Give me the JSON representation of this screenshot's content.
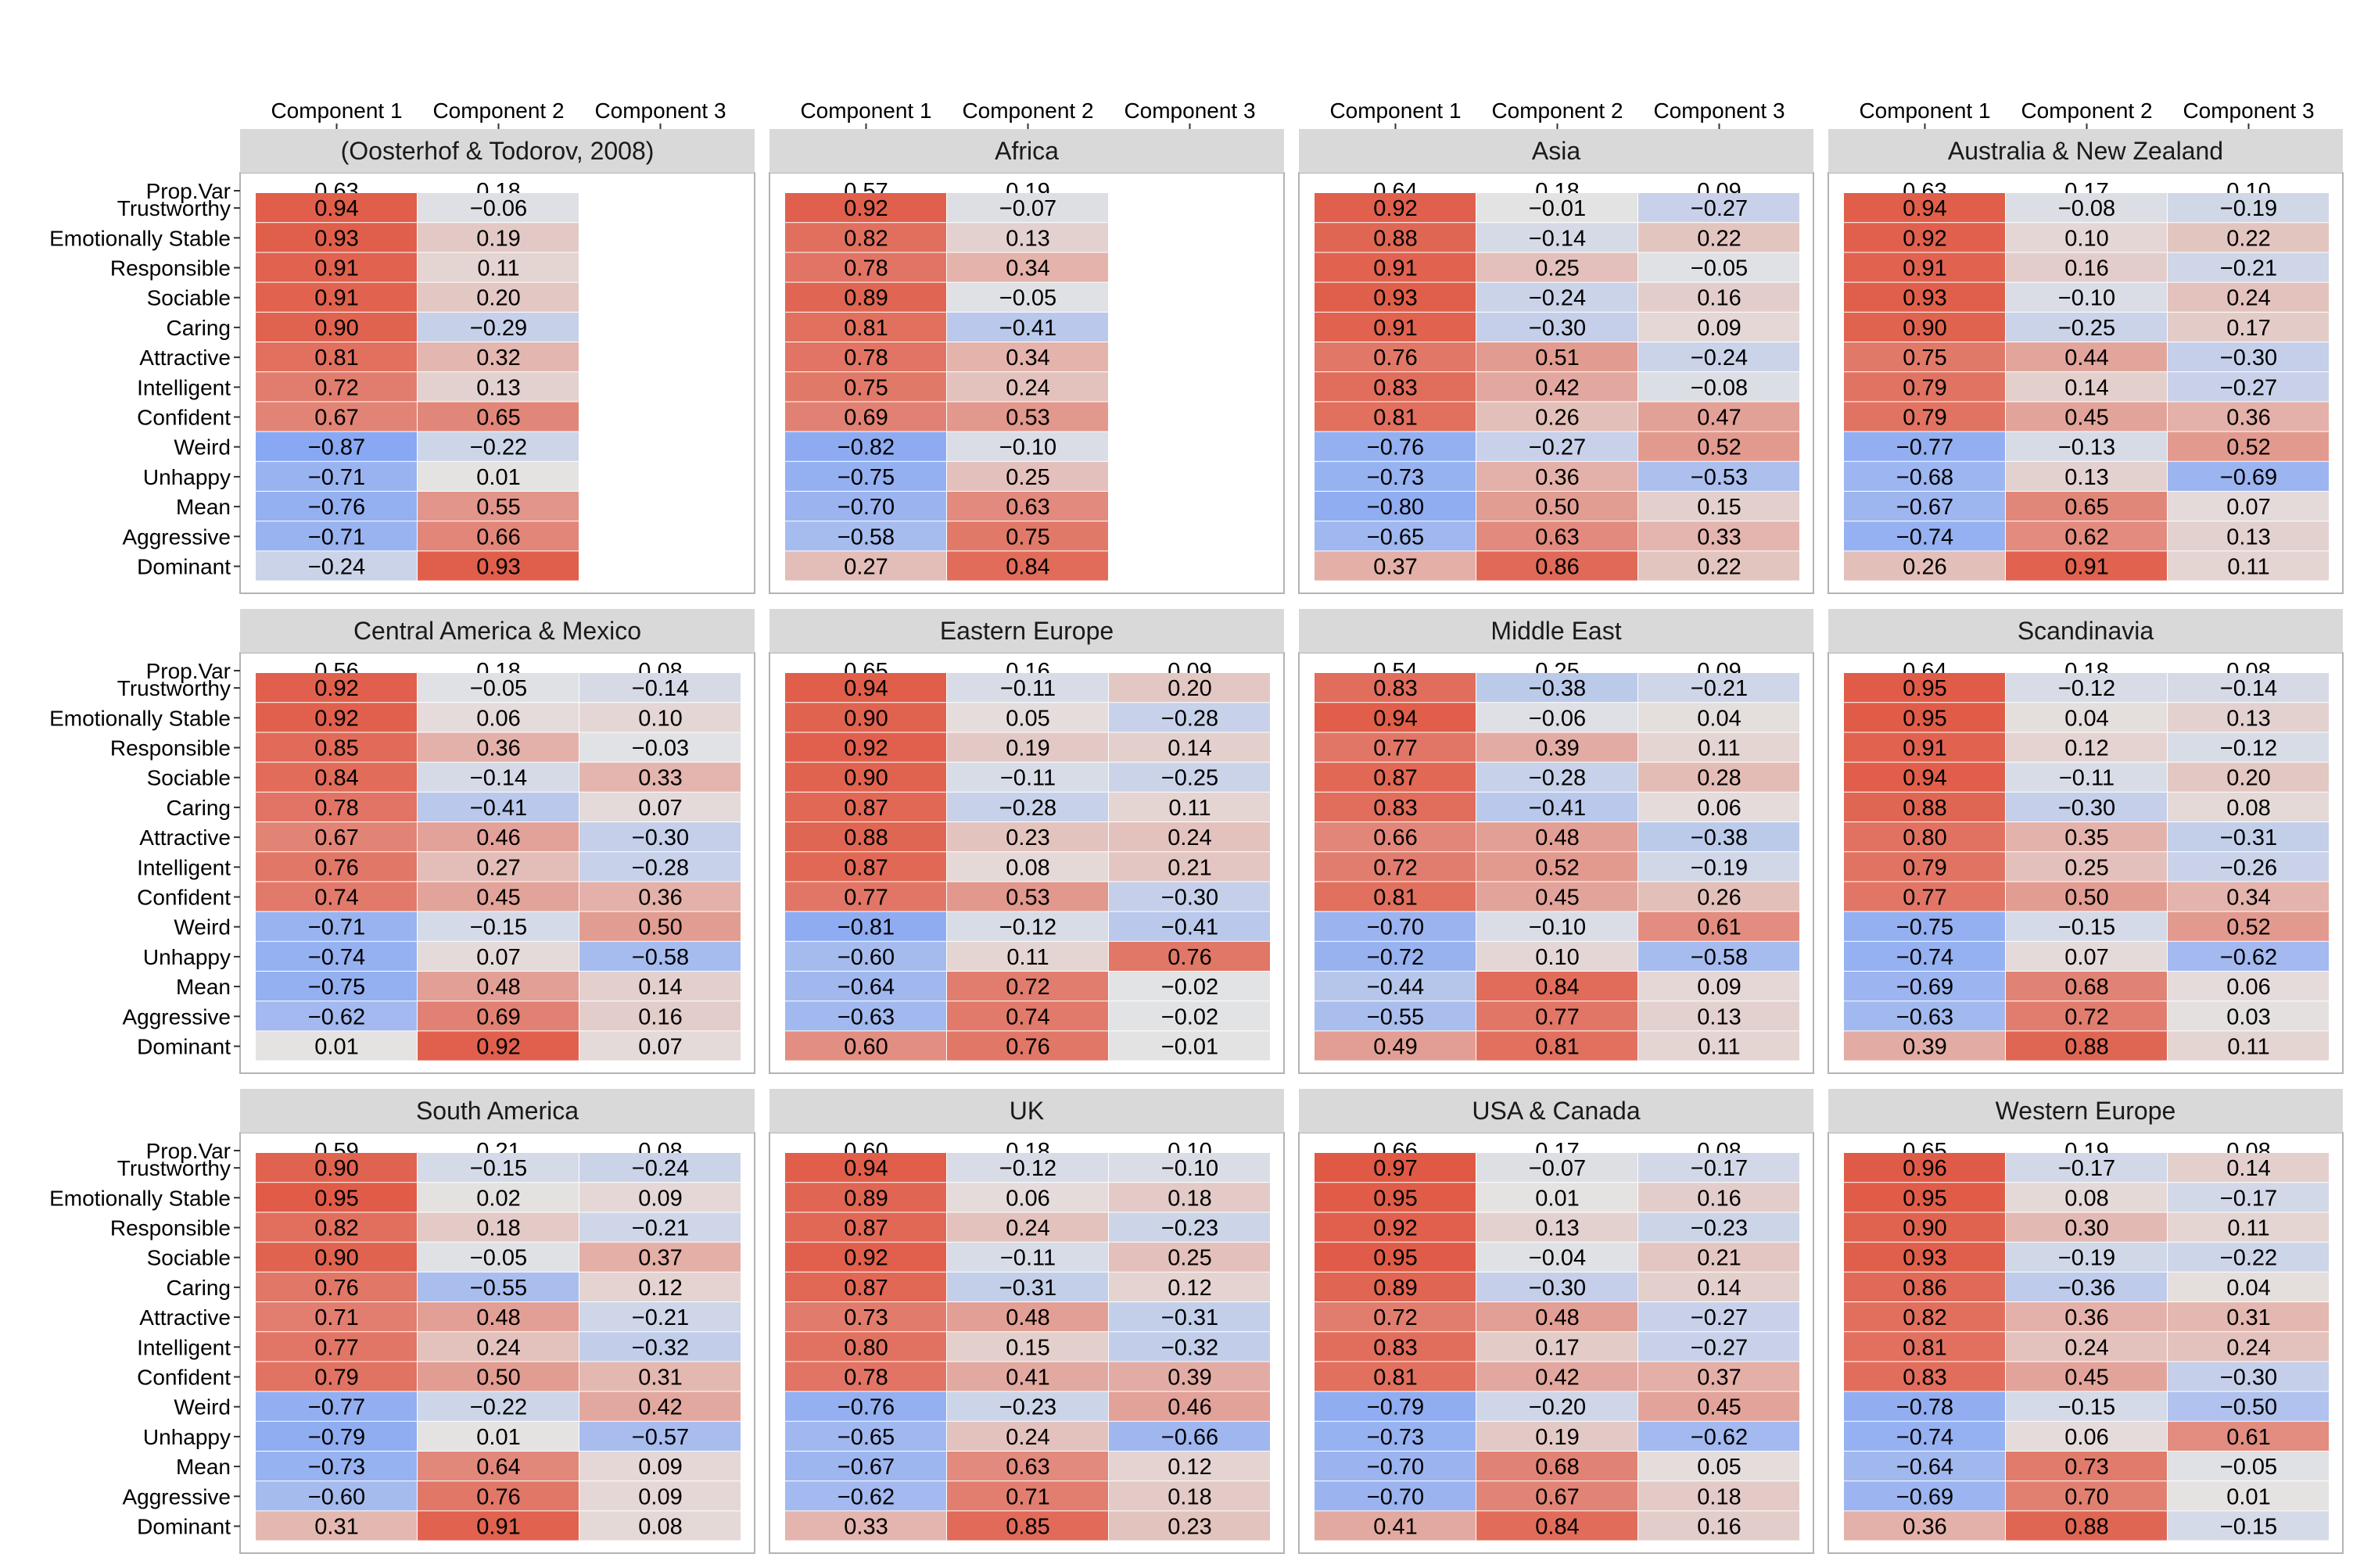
{
  "chart_data": {
    "type": "heatmap",
    "layout": {
      "rows": 3,
      "cols": 4
    },
    "columns": [
      "Component 1",
      "Component 2",
      "Component 3"
    ],
    "row_labels": [
      "Prop.Var",
      "Trustworthy",
      "Emotionally Stable",
      "Responsible",
      "Sociable",
      "Caring",
      "Attractive",
      "Intelligent",
      "Confident",
      "Weird",
      "Unhappy",
      "Mean",
      "Aggressive",
      "Dominant"
    ],
    "value_range": [
      -1,
      1
    ],
    "colors": {
      "negative": "#7b9ff5",
      "neutral": "#e4e4e4",
      "positive": "#e05540",
      "strip": "#d9d9d9",
      "panel_border": "#b3b3b3"
    },
    "panels": [
      {
        "title": "(Oosterhof & Todorov, 2008)",
        "prop_var": [
          "0.63",
          "0.18",
          ""
        ],
        "values": [
          [
            0.94,
            -0.06,
            null
          ],
          [
            0.93,
            0.19,
            null
          ],
          [
            0.91,
            0.11,
            null
          ],
          [
            0.91,
            0.2,
            null
          ],
          [
            0.9,
            -0.29,
            null
          ],
          [
            0.81,
            0.32,
            null
          ],
          [
            0.72,
            0.13,
            null
          ],
          [
            0.67,
            0.65,
            null
          ],
          [
            -0.87,
            -0.22,
            null
          ],
          [
            -0.71,
            0.01,
            null
          ],
          [
            -0.76,
            0.55,
            null
          ],
          [
            -0.71,
            0.66,
            null
          ],
          [
            -0.24,
            0.93,
            null
          ]
        ]
      },
      {
        "title": "Africa",
        "prop_var": [
          "0.57",
          "0.19",
          ""
        ],
        "values": [
          [
            0.92,
            -0.07,
            null
          ],
          [
            0.82,
            0.13,
            null
          ],
          [
            0.78,
            0.34,
            null
          ],
          [
            0.89,
            -0.05,
            null
          ],
          [
            0.81,
            -0.41,
            null
          ],
          [
            0.78,
            0.34,
            null
          ],
          [
            0.75,
            0.24,
            null
          ],
          [
            0.69,
            0.53,
            null
          ],
          [
            -0.82,
            -0.1,
            null
          ],
          [
            -0.75,
            0.25,
            null
          ],
          [
            -0.7,
            0.63,
            null
          ],
          [
            -0.58,
            0.75,
            null
          ],
          [
            0.27,
            0.84,
            null
          ]
        ]
      },
      {
        "title": "Asia",
        "prop_var": [
          "0.64",
          "0.18",
          "0.09"
        ],
        "values": [
          [
            0.92,
            -0.01,
            -0.27
          ],
          [
            0.88,
            -0.14,
            0.22
          ],
          [
            0.91,
            0.25,
            -0.05
          ],
          [
            0.93,
            -0.24,
            0.16
          ],
          [
            0.91,
            -0.3,
            0.09
          ],
          [
            0.76,
            0.51,
            -0.24
          ],
          [
            0.83,
            0.42,
            -0.08
          ],
          [
            0.81,
            0.26,
            0.47
          ],
          [
            -0.76,
            -0.27,
            0.52
          ],
          [
            -0.73,
            0.36,
            -0.53
          ],
          [
            -0.8,
            0.5,
            0.15
          ],
          [
            -0.65,
            0.63,
            0.33
          ],
          [
            0.37,
            0.86,
            0.22
          ]
        ]
      },
      {
        "title": "Australia & New Zealand",
        "prop_var": [
          "0.63",
          "0.17",
          "0.10"
        ],
        "values": [
          [
            0.94,
            -0.08,
            -0.19
          ],
          [
            0.92,
            0.1,
            0.22
          ],
          [
            0.91,
            0.16,
            -0.21
          ],
          [
            0.93,
            -0.1,
            0.24
          ],
          [
            0.9,
            -0.25,
            0.17
          ],
          [
            0.75,
            0.44,
            -0.3
          ],
          [
            0.79,
            0.14,
            -0.27
          ],
          [
            0.79,
            0.45,
            0.36
          ],
          [
            -0.77,
            -0.13,
            0.52
          ],
          [
            -0.68,
            0.13,
            -0.69
          ],
          [
            -0.67,
            0.65,
            0.07
          ],
          [
            -0.74,
            0.62,
            0.13
          ],
          [
            0.26,
            0.91,
            0.11
          ]
        ]
      },
      {
        "title": "Central America & Mexico",
        "prop_var": [
          "0.56",
          "0.18",
          "0.08"
        ],
        "values": [
          [
            0.92,
            -0.05,
            -0.14
          ],
          [
            0.92,
            0.06,
            0.1
          ],
          [
            0.85,
            0.36,
            -0.03
          ],
          [
            0.84,
            -0.14,
            0.33
          ],
          [
            0.78,
            -0.41,
            0.07
          ],
          [
            0.67,
            0.46,
            -0.3
          ],
          [
            0.76,
            0.27,
            -0.28
          ],
          [
            0.74,
            0.45,
            0.36
          ],
          [
            -0.71,
            -0.15,
            0.5
          ],
          [
            -0.74,
            0.07,
            -0.58
          ],
          [
            -0.75,
            0.48,
            0.14
          ],
          [
            -0.62,
            0.69,
            0.16
          ],
          [
            0.01,
            0.92,
            0.07
          ]
        ]
      },
      {
        "title": "Eastern Europe",
        "prop_var": [
          "0.65",
          "0.16",
          "0.09"
        ],
        "values": [
          [
            0.94,
            -0.11,
            0.2
          ],
          [
            0.9,
            0.05,
            -0.28
          ],
          [
            0.92,
            0.19,
            0.14
          ],
          [
            0.9,
            -0.11,
            -0.25
          ],
          [
            0.87,
            -0.28,
            0.11
          ],
          [
            0.88,
            0.23,
            0.24
          ],
          [
            0.87,
            0.08,
            0.21
          ],
          [
            0.77,
            0.53,
            -0.3
          ],
          [
            -0.81,
            -0.12,
            -0.41
          ],
          [
            -0.6,
            0.11,
            0.76
          ],
          [
            -0.64,
            0.72,
            -0.02
          ],
          [
            -0.63,
            0.74,
            -0.02
          ],
          [
            0.6,
            0.76,
            -0.01
          ]
        ]
      },
      {
        "title": "Middle East",
        "prop_var": [
          "0.54",
          "0.25",
          "0.09"
        ],
        "values": [
          [
            0.83,
            -0.38,
            -0.21
          ],
          [
            0.94,
            -0.06,
            0.04
          ],
          [
            0.77,
            0.39,
            0.11
          ],
          [
            0.87,
            -0.28,
            0.28
          ],
          [
            0.83,
            -0.41,
            0.06
          ],
          [
            0.66,
            0.48,
            -0.38
          ],
          [
            0.72,
            0.52,
            -0.19
          ],
          [
            0.81,
            0.45,
            0.26
          ],
          [
            -0.7,
            -0.1,
            0.61
          ],
          [
            -0.72,
            0.1,
            -0.58
          ],
          [
            -0.44,
            0.84,
            0.09
          ],
          [
            -0.55,
            0.77,
            0.13
          ],
          [
            0.49,
            0.81,
            0.11
          ]
        ]
      },
      {
        "title": "Scandinavia",
        "prop_var": [
          "0.64",
          "0.18",
          "0.08"
        ],
        "values": [
          [
            0.95,
            -0.12,
            -0.14
          ],
          [
            0.95,
            0.04,
            0.13
          ],
          [
            0.91,
            0.12,
            -0.12
          ],
          [
            0.94,
            -0.11,
            0.2
          ],
          [
            0.88,
            -0.3,
            0.08
          ],
          [
            0.8,
            0.35,
            -0.31
          ],
          [
            0.79,
            0.25,
            -0.26
          ],
          [
            0.77,
            0.5,
            0.34
          ],
          [
            -0.75,
            -0.15,
            0.52
          ],
          [
            -0.74,
            0.07,
            -0.62
          ],
          [
            -0.69,
            0.68,
            0.06
          ],
          [
            -0.63,
            0.72,
            0.03
          ],
          [
            0.39,
            0.88,
            0.11
          ]
        ]
      },
      {
        "title": "South America",
        "prop_var": [
          "0.59",
          "0.21",
          "0.08"
        ],
        "values": [
          [
            0.9,
            -0.15,
            -0.24
          ],
          [
            0.95,
            0.02,
            0.09
          ],
          [
            0.82,
            0.18,
            -0.21
          ],
          [
            0.9,
            -0.05,
            0.37
          ],
          [
            0.76,
            -0.55,
            0.12
          ],
          [
            0.71,
            0.48,
            -0.21
          ],
          [
            0.77,
            0.24,
            -0.32
          ],
          [
            0.79,
            0.5,
            0.31
          ],
          [
            -0.77,
            -0.22,
            0.42
          ],
          [
            -0.79,
            0.01,
            -0.57
          ],
          [
            -0.73,
            0.64,
            0.09
          ],
          [
            -0.6,
            0.76,
            0.09
          ],
          [
            0.31,
            0.91,
            0.08
          ]
        ]
      },
      {
        "title": "UK",
        "prop_var": [
          "0.60",
          "0.18",
          "0.10"
        ],
        "values": [
          [
            0.94,
            -0.12,
            -0.1
          ],
          [
            0.89,
            0.06,
            0.18
          ],
          [
            0.87,
            0.24,
            -0.23
          ],
          [
            0.92,
            -0.11,
            0.25
          ],
          [
            0.87,
            -0.31,
            0.12
          ],
          [
            0.73,
            0.48,
            -0.31
          ],
          [
            0.8,
            0.15,
            -0.32
          ],
          [
            0.78,
            0.41,
            0.39
          ],
          [
            -0.76,
            -0.23,
            0.46
          ],
          [
            -0.65,
            0.24,
            -0.66
          ],
          [
            -0.67,
            0.63,
            0.12
          ],
          [
            -0.62,
            0.71,
            0.18
          ],
          [
            0.33,
            0.85,
            0.23
          ]
        ]
      },
      {
        "title": "USA & Canada",
        "prop_var": [
          "0.66",
          "0.17",
          "0.08"
        ],
        "values": [
          [
            0.97,
            -0.07,
            -0.17
          ],
          [
            0.95,
            0.01,
            0.16
          ],
          [
            0.92,
            0.13,
            -0.23
          ],
          [
            0.95,
            -0.04,
            0.21
          ],
          [
            0.89,
            -0.3,
            0.14
          ],
          [
            0.72,
            0.48,
            -0.27
          ],
          [
            0.83,
            0.17,
            -0.27
          ],
          [
            0.81,
            0.42,
            0.37
          ],
          [
            -0.79,
            -0.2,
            0.45
          ],
          [
            -0.73,
            0.19,
            -0.62
          ],
          [
            -0.7,
            0.68,
            0.05
          ],
          [
            -0.7,
            0.67,
            0.18
          ],
          [
            0.41,
            0.84,
            0.16
          ]
        ]
      },
      {
        "title": "Western Europe",
        "prop_var": [
          "0.65",
          "0.19",
          "0.08"
        ],
        "values": [
          [
            0.96,
            -0.17,
            0.14
          ],
          [
            0.95,
            0.08,
            -0.17
          ],
          [
            0.9,
            0.3,
            0.11
          ],
          [
            0.93,
            -0.19,
            -0.22
          ],
          [
            0.86,
            -0.36,
            0.04
          ],
          [
            0.82,
            0.36,
            0.31
          ],
          [
            0.81,
            0.24,
            0.24
          ],
          [
            0.83,
            0.45,
            -0.3
          ],
          [
            -0.78,
            -0.15,
            -0.5
          ],
          [
            -0.74,
            0.06,
            0.61
          ],
          [
            -0.64,
            0.73,
            -0.05
          ],
          [
            -0.69,
            0.7,
            0.01
          ],
          [
            0.36,
            0.88,
            -0.15
          ]
        ]
      }
    ]
  }
}
